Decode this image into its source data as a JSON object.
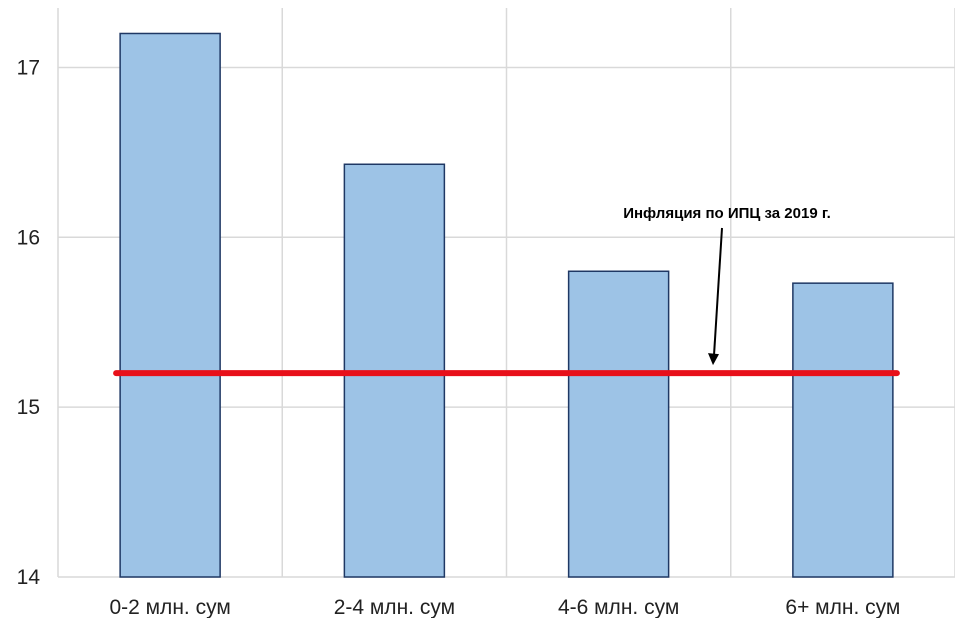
{
  "chart_data": {
    "type": "bar",
    "title": "",
    "xlabel": "",
    "ylabel": "",
    "categories": [
      "0-2 млн. сум",
      "2-4 млн. сум",
      "4-6 млн. сум",
      "6+ млн. сум"
    ],
    "values": [
      17.2,
      16.43,
      15.8,
      15.73
    ],
    "ylim": [
      14,
      17.35
    ],
    "yticks": [
      "14",
      "15",
      "16",
      "17"
    ],
    "grid": true,
    "reference_line": {
      "value": 15.2,
      "label": "Инфляция по ИПЦ за 2019 г."
    },
    "colors": {
      "bar_fill": "#9dc3e6",
      "bar_stroke": "#1f3864",
      "reference_line": "#e8101a",
      "grid": "#d9d9d9"
    }
  }
}
